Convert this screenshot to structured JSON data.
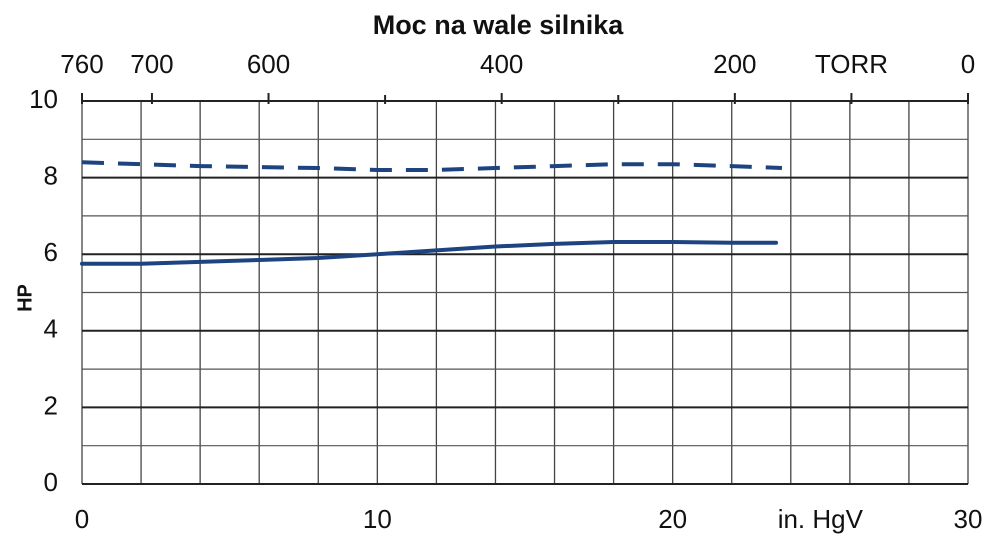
{
  "chart_data": {
    "type": "line",
    "title": "Moc na wale silnika",
    "ylabel": "HP",
    "xlabel": {
      "value": 25,
      "label": "in. HgV"
    },
    "xlim": [
      0,
      30
    ],
    "xticks": [
      0,
      10,
      20,
      30
    ],
    "xgrid": [
      0,
      2,
      4,
      6,
      8,
      10,
      12,
      14,
      16,
      18,
      20,
      22,
      24,
      26,
      28,
      30
    ],
    "x2lim": [
      760,
      0
    ],
    "x2ticks": [
      760,
      700,
      600,
      400,
      200,
      {
        "value": 100,
        "label": "TORR"
      },
      0
    ],
    "x2minor": [
      500,
      300
    ],
    "ylim": [
      0,
      10
    ],
    "yticks": [
      0,
      2,
      4,
      6,
      8,
      10
    ],
    "ygrid": [
      0,
      1,
      2,
      3,
      4,
      5,
      6,
      7,
      8,
      9,
      10
    ],
    "series": [
      {
        "color": "#1d4480",
        "dashed": true,
        "x": [
          0,
          4,
          8,
          10,
          12,
          14,
          16,
          18,
          20,
          22,
          23.7
        ],
        "values": [
          8.4,
          8.3,
          8.25,
          8.2,
          8.2,
          8.25,
          8.3,
          8.35,
          8.35,
          8.3,
          8.25
        ]
      },
      {
        "color": "#1d4480",
        "dashed": false,
        "x": [
          0,
          2,
          4,
          6,
          8,
          10,
          12,
          14,
          16,
          18,
          20,
          22,
          23.5
        ],
        "values": [
          5.75,
          5.75,
          5.8,
          5.85,
          5.9,
          6.0,
          6.1,
          6.2,
          6.27,
          6.32,
          6.32,
          6.3,
          6.3
        ]
      }
    ]
  }
}
